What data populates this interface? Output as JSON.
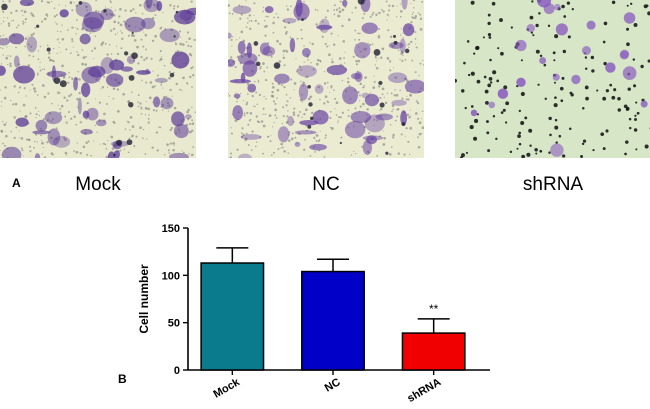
{
  "panel_a": {
    "letter": "A",
    "images": [
      {
        "label": "Mock",
        "stain_level": "high",
        "bg_color": "#e9e9cf",
        "cell_color": "#5d3c98"
      },
      {
        "label": "NC",
        "stain_level": "high",
        "bg_color": "#ebebd2",
        "cell_color": "#6a45a3"
      },
      {
        "label": "shRNA",
        "stain_level": "low",
        "bg_color": "#d6e6c6",
        "cell_color": "#8a5cc0"
      }
    ]
  },
  "panel_b": {
    "letter": "B"
  },
  "chart_data": {
    "type": "bar",
    "categories": [
      "Mock",
      "NC",
      "shRNA"
    ],
    "values": [
      113,
      104,
      39
    ],
    "errors": [
      16,
      13,
      15
    ],
    "colors": [
      "#0a7b8c",
      "#0000c8",
      "#f00000"
    ],
    "annotations": [
      "",
      "",
      "**"
    ],
    "xlabel": "",
    "ylabel": "Cell number",
    "ylim": [
      0,
      150
    ],
    "yticks": [
      0,
      50,
      100,
      150
    ],
    "grid": false
  }
}
